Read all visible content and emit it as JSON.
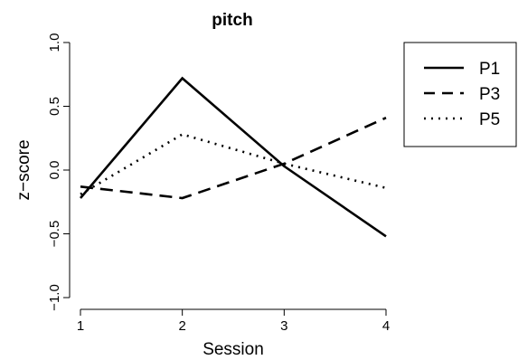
{
  "chart_data": {
    "type": "line",
    "title": "pitch",
    "xlabel": "Session",
    "ylabel": "z−score",
    "x": [
      1,
      2,
      3,
      4
    ],
    "x_tick_labels": [
      "1",
      "2",
      "3",
      "4"
    ],
    "y_tick_labels": [
      "−1.0",
      "−0.5",
      "0.0",
      "0.5",
      "1.0"
    ],
    "y_ticks": [
      -1.0,
      -0.5,
      0.0,
      0.5,
      1.0
    ],
    "xlim": [
      1,
      4
    ],
    "ylim": [
      -1.0,
      1.0
    ],
    "grid": false,
    "legend_position": "top-right",
    "series": [
      {
        "name": "P1",
        "line_style": "solid",
        "color": "#000000",
        "values": [
          -0.22,
          0.72,
          0.03,
          -0.52
        ]
      },
      {
        "name": "P3",
        "line_style": "dashed",
        "color": "#000000",
        "values": [
          -0.13,
          -0.22,
          0.05,
          0.41
        ]
      },
      {
        "name": "P5",
        "line_style": "dotted",
        "color": "#000000",
        "values": [
          -0.19,
          0.28,
          0.05,
          -0.14
        ]
      }
    ]
  }
}
